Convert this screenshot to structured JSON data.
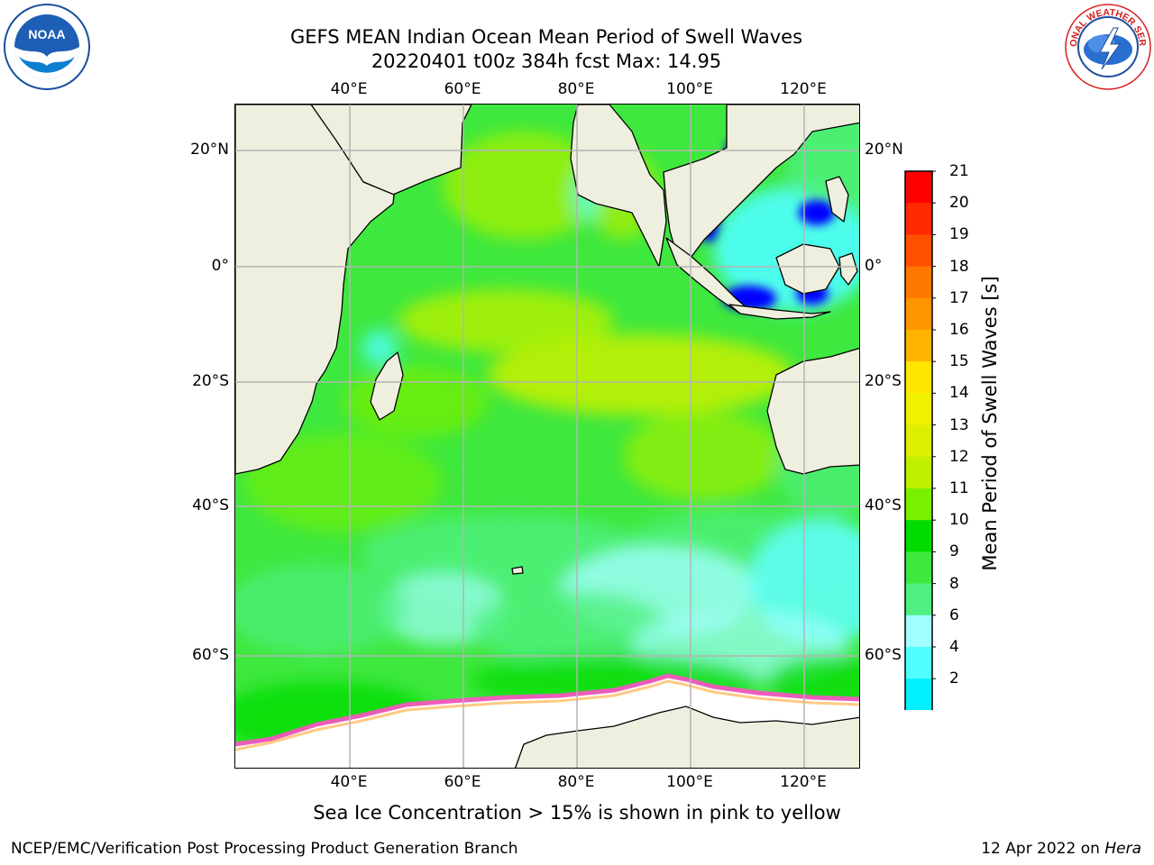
{
  "title": {
    "line1": "GEFS MEAN Indian Ocean Mean Period of Swell Waves",
    "line2": "20220401 t00z 384h fcst   Max: 14.95"
  },
  "map": {
    "lon_ticks_top": [
      "40°E",
      "60°E",
      "80°E",
      "100°E",
      "120°E"
    ],
    "lon_ticks_bottom": [
      "40°E",
      "60°E",
      "80°E",
      "100°E",
      "120°E"
    ],
    "lat_ticks_left": [
      "20°N",
      "0°",
      "20°S",
      "40°S",
      "60°S"
    ],
    "lat_ticks_right": [
      "20°N",
      "0°",
      "20°S",
      "40°S",
      "60°S"
    ],
    "land_color": "#efefdf",
    "ice_color": "#ffffff",
    "grid_color": "#b4b4b4"
  },
  "colorbar": {
    "label": "Mean Period of Swell Waves [s]",
    "ticks": [
      "21",
      "20",
      "19",
      "18",
      "17",
      "16",
      "15",
      "14",
      "13",
      "12",
      "11",
      "10",
      "9",
      "8",
      "6",
      "4",
      "2"
    ],
    "colors_top_to_bottom": [
      "#ff0000",
      "#ff2800",
      "#ff5000",
      "#ff7800",
      "#ff9600",
      "#ffb400",
      "#ffe600",
      "#f0f000",
      "#dcf000",
      "#c0f000",
      "#78f000",
      "#00dc00",
      "#3ee83e",
      "#50f080",
      "#a0ffff",
      "#50ffff",
      "#00f0ff",
      "#0078ff"
    ],
    "under_color": "#0000ff"
  },
  "footnote": "Sea Ice Concentration > 15% is shown in pink to yellow",
  "credit": "NCEP/EMC/Verification Post Processing Product Generation Branch",
  "date": {
    "text": "12 Apr 2022 on ",
    "machine": "Hera"
  },
  "logos": {
    "noaa": "NOAA",
    "nws_ring": "NATIONAL WEATHER SERVICE"
  }
}
